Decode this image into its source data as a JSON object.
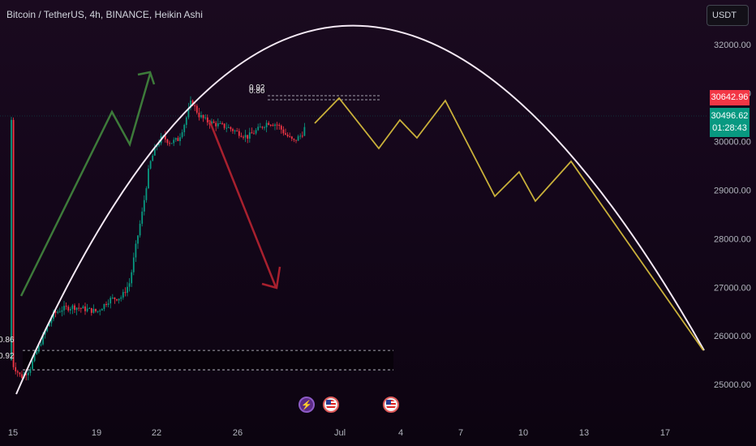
{
  "header": {
    "symbol_title": "Bitcoin / TetherUS, 4h, BINANCE, Heikin Ashi",
    "currency_label": "USDT"
  },
  "price_axis": {
    "ticks": [
      "32000.00",
      "31000.00",
      "30000.00",
      "29000.00",
      "28000.00",
      "27000.00",
      "26000.00",
      "25000.00"
    ],
    "tick_values": [
      32000,
      31000,
      30000,
      29000,
      28000,
      27000,
      26000,
      25000
    ]
  },
  "time_axis": {
    "ticks": [
      "15",
      "19",
      "22",
      "26",
      "Jul",
      "4",
      "7",
      "10",
      "13",
      "17"
    ]
  },
  "price_tags": {
    "red": "30642.96",
    "green_price": "30496.62",
    "countdown": "01:28:43"
  },
  "fib_labels": {
    "top_a": "0.92",
    "top_b": "0.86",
    "left_a": "0.86",
    "left_b": "0.92"
  },
  "events": {
    "flash_icon": "lightning-icon",
    "us_icon": "us-flag-icon"
  },
  "colors": {
    "up_candle": "#089981",
    "down_candle": "#f23645",
    "projection": "#c9b03a",
    "arc": "#f5e9f5",
    "up_arrow": "#3d7a3a",
    "down_arrow": "#a8202e"
  },
  "chart_data": {
    "type": "candlestick",
    "title": "Bitcoin / TetherUS, 4h, BINANCE, Heikin Ashi",
    "ylim": [
      24900,
      32400
    ],
    "heikin_ashi_closes_approx": [
      25300,
      25900,
      26500,
      26550,
      26600,
      27000,
      29800,
      30200,
      30900,
      30350,
      30200,
      30500,
      30700,
      30300,
      30500
    ],
    "projection_path_prices": [
      30300,
      30850,
      30000,
      30400,
      30050,
      30850,
      28830,
      29150,
      28750,
      29600
    ],
    "support_zone": [
      25300,
      25700
    ]
  }
}
